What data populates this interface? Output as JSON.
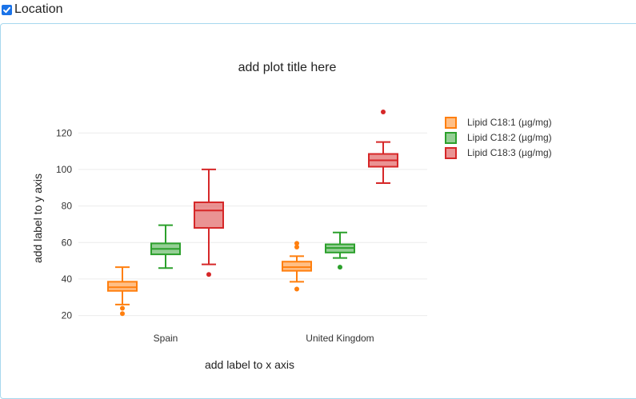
{
  "header": {
    "label": "Location",
    "checked": true
  },
  "chart_data": {
    "type": "box",
    "title": "add plot title here",
    "xlabel": "add label to x axis",
    "ylabel": "add label to y axis",
    "categories": [
      "Spain",
      "United Kingdom"
    ],
    "yticks": [
      20,
      40,
      60,
      80,
      100,
      120
    ],
    "ylim": [
      15,
      128
    ],
    "grid": true,
    "legend_position": "top-right",
    "series": [
      {
        "name": "Lipid  C18:1 (µg/mg)",
        "color": "#ff7f0e",
        "boxes": [
          {
            "min": 26,
            "q1": 33.5,
            "median": 35.5,
            "q3": 38.5,
            "max": 46.5,
            "outliers": [
              21,
              24
            ]
          },
          {
            "min": 38.5,
            "q1": 44.5,
            "median": 46.5,
            "q3": 49.5,
            "max": 52.5,
            "outliers": [
              34.5,
              57.5,
              59.5
            ]
          }
        ]
      },
      {
        "name": "Lipid  C18:2 (µg/mg)",
        "color": "#2ca02c",
        "boxes": [
          {
            "min": 46,
            "q1": 53.5,
            "median": 56.5,
            "q3": 59.5,
            "max": 69.5,
            "outliers": []
          },
          {
            "min": 51.5,
            "q1": 54.5,
            "median": 57,
            "q3": 59,
            "max": 65.5,
            "outliers": [
              46.5
            ]
          }
        ]
      },
      {
        "name": "Lipid  C18:3 (µg/mg)",
        "color": "#d62728",
        "boxes": [
          {
            "min": 48,
            "q1": 68,
            "median": 77.5,
            "q3": 82,
            "max": 100,
            "outliers": [
              42.5
            ]
          },
          {
            "min": 92.5,
            "q1": 101.5,
            "median": 105,
            "q3": 108.5,
            "max": 115,
            "outliers": [
              131.5
            ]
          }
        ]
      }
    ]
  }
}
